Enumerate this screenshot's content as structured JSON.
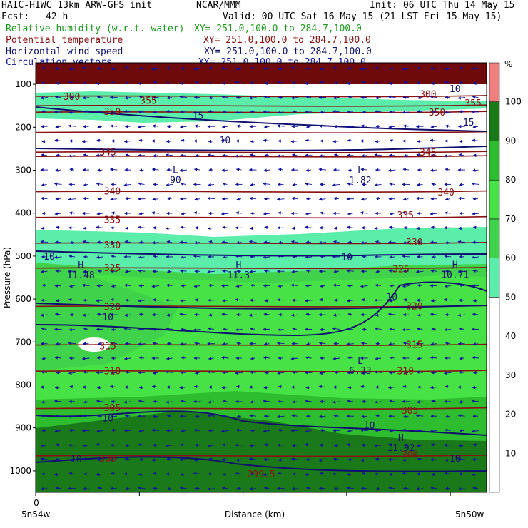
{
  "header": {
    "model": "HAIC-HIWC 13km ARW-GFS init",
    "org": "NCAR/MMM",
    "init": "Init: 06 UTC Thu 14 May 15",
    "fcst_label": "Fcst:",
    "fcst_value": "42 h",
    "valid": "Valid: 00 UTC Sat 16 May 15 (21 LST Fri 15 May 15)",
    "fields": [
      {
        "name": "Relative humidity (w.r.t. water)",
        "xy": "XY= 251.0,100.0 to 284.7,100.0",
        "color": "#1a9a1a"
      },
      {
        "name": "Potential temperature",
        "xy": "XY= 251.0,100.0 to 284.7,100.0",
        "color": "#8b1010"
      },
      {
        "name": "Horizontal wind speed",
        "xy": "XY= 251.0,100.0 to 284.7,100.0",
        "color": "#10106e"
      },
      {
        "name": "Circulation vectors",
        "xy": "XY= 251.0,100.0 to 284.7,100.0",
        "color": "#1010a0"
      }
    ]
  },
  "chart_data": {
    "type": "heatmap",
    "title": "",
    "xlabel": "Distance (km)",
    "ylabel": "Pressure (hPa)",
    "x_start_label": "0",
    "x_left_end": "5n54w",
    "x_right_end": "5n50w",
    "y_ticks": [
      100,
      200,
      300,
      400,
      500,
      600,
      700,
      800,
      900,
      1000
    ],
    "y_range_hPa": [
      50,
      1050
    ],
    "colorbar": {
      "unit": "%",
      "ticks": [
        10,
        20,
        30,
        40,
        50,
        60,
        70,
        80,
        90,
        100
      ],
      "bands": [
        {
          "from": 0,
          "to": 50,
          "color": "#ffffff"
        },
        {
          "from": 50,
          "to": 60,
          "color": "#5aeeaa"
        },
        {
          "from": 60,
          "to": 70,
          "color": "#3fd24a"
        },
        {
          "from": 70,
          "to": 80,
          "color": "#46e246"
        },
        {
          "from": 80,
          "to": 90,
          "color": "#2ebd2e"
        },
        {
          "from": 90,
          "to": 100,
          "color": "#1a7a1a"
        },
        {
          "from": 100,
          "to": 110,
          "color": "#f08080"
        }
      ]
    },
    "theta_labels": [
      {
        "text": "300",
        "x": 0.08,
        "p": 128
      },
      {
        "text": "355",
        "x": 0.25,
        "p": 137
      },
      {
        "text": "350",
        "x": 0.17,
        "p": 163
      },
      {
        "text": "300",
        "x": 0.87,
        "p": 122
      },
      {
        "text": "355",
        "x": 0.97,
        "p": 143
      },
      {
        "text": "350",
        "x": 0.89,
        "p": 165
      },
      {
        "text": "345",
        "x": 0.16,
        "p": 257
      },
      {
        "text": "345",
        "x": 0.87,
        "p": 258
      },
      {
        "text": "340",
        "x": 0.17,
        "p": 348
      },
      {
        "text": "340",
        "x": 0.91,
        "p": 351
      },
      {
        "text": "335",
        "x": 0.17,
        "p": 415
      },
      {
        "text": "335",
        "x": 0.82,
        "p": 404
      },
      {
        "text": "330",
        "x": 0.17,
        "p": 474
      },
      {
        "text": "330",
        "x": 0.84,
        "p": 467
      },
      {
        "text": "325",
        "x": 0.17,
        "p": 527
      },
      {
        "text": "325",
        "x": 0.81,
        "p": 529
      },
      {
        "text": "320",
        "x": 0.17,
        "p": 617
      },
      {
        "text": "320",
        "x": 0.84,
        "p": 616
      },
      {
        "text": "315",
        "x": 0.16,
        "p": 709
      },
      {
        "text": "315",
        "x": 0.84,
        "p": 705
      },
      {
        "text": "310",
        "x": 0.17,
        "p": 767
      },
      {
        "text": "310",
        "x": 0.82,
        "p": 767
      },
      {
        "text": "305",
        "x": 0.17,
        "p": 852
      },
      {
        "text": "305",
        "x": 0.83,
        "p": 859
      },
      {
        "text": "300",
        "x": 0.16,
        "p": 970
      },
      {
        "text": "300",
        "x": 0.83,
        "p": 961
      },
      {
        "text": "299.5",
        "x": 0.5,
        "p": 1007
      }
    ],
    "wind_labels": [
      {
        "text": "15",
        "x": 0.36,
        "p": 172
      },
      {
        "text": "15",
        "x": 0.96,
        "p": 188
      },
      {
        "text": "10",
        "x": 0.42,
        "p": 229
      },
      {
        "text": "10",
        "x": 0.93,
        "p": 110
      },
      {
        "text": "10",
        "x": 0.03,
        "p": 500
      },
      {
        "text": "10",
        "x": 0.69,
        "p": 502
      },
      {
        "text": "10",
        "x": 0.16,
        "p": 641
      },
      {
        "text": "10",
        "x": 0.79,
        "p": 594
      },
      {
        "text": "10",
        "x": 0.16,
        "p": 876
      },
      {
        "text": "10",
        "x": 0.74,
        "p": 893
      },
      {
        "text": "10",
        "x": 0.09,
        "p": 972
      },
      {
        "text": "10",
        "x": 0.93,
        "p": 970
      }
    ],
    "extrema": [
      {
        "kind": "L",
        "value": "90",
        "x": 0.31,
        "p": 320
      },
      {
        "kind": "L",
        "value": "1.82",
        "x": 0.72,
        "p": 321
      },
      {
        "kind": "H",
        "value": "11.48",
        "x": 0.1,
        "p": 542
      },
      {
        "kind": "H",
        "value": "11.3",
        "x": 0.45,
        "p": 542
      },
      {
        "kind": "H",
        "value": "10.71",
        "x": 0.93,
        "p": 541
      },
      {
        "kind": "L",
        "value": "6.33",
        "x": 0.72,
        "p": 764
      },
      {
        "kind": "H",
        "value": "11.92",
        "x": 0.81,
        "p": 944
      }
    ],
    "grid": false,
    "legend": "right colorbar"
  }
}
